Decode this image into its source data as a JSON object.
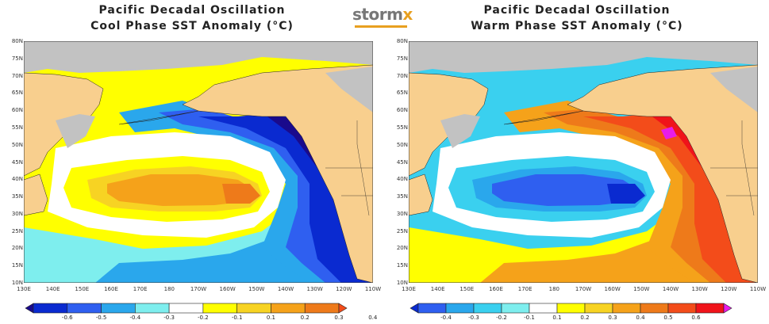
{
  "logo": {
    "main": "storm",
    "accent": "x"
  },
  "left": {
    "title_line1": "Pacific Decadal Oscillation",
    "title_line2": "Cool Phase SST Anomaly (°C)",
    "colorbar_ticks": [
      "-0.6",
      "-0.5",
      "-0.4",
      "-0.3",
      "-0.2",
      "-0.1",
      "0.1",
      "0.2",
      "0.3",
      "0.4"
    ],
    "colors": [
      "#1a0a8c",
      "#0a2ad0",
      "#2f5ff0",
      "#2aa7ec",
      "#7eeeee",
      "#ffffff",
      "#ffff00",
      "#f7d323",
      "#f5a21a",
      "#ee7a1a",
      "#f34c1a"
    ]
  },
  "right": {
    "title_line1": "Pacific Decadal Oscillation",
    "title_line2": "Warm Phase SST Anomaly (°C)",
    "colorbar_ticks": [
      "-0.4",
      "-0.3",
      "-0.2",
      "-0.1",
      "0.1",
      "0.2",
      "0.3",
      "0.4",
      "0.5",
      "0.6"
    ],
    "colors": [
      "#0a2ad0",
      "#2f5ff0",
      "#2aa7ec",
      "#3ad0ef",
      "#7eeeee",
      "#ffffff",
      "#ffff00",
      "#f7d323",
      "#f5a21a",
      "#ee7a1a",
      "#f34c1a",
      "#f0131a",
      "#e81ce8"
    ]
  },
  "axes": {
    "y_labels": [
      "80N",
      "75N",
      "70N",
      "65N",
      "60N",
      "55N",
      "50N",
      "45N",
      "40N",
      "35N",
      "30N",
      "25N",
      "20N",
      "15N",
      "10N"
    ],
    "x_labels": [
      "130E",
      "140E",
      "150E",
      "160E",
      "170E",
      "180",
      "170W",
      "160W",
      "150W",
      "140W",
      "130W",
      "120W",
      "110W"
    ]
  },
  "map_colors": {
    "land": "#f8cf8e",
    "ice": "#c2c2c2",
    "border": "#222222"
  }
}
